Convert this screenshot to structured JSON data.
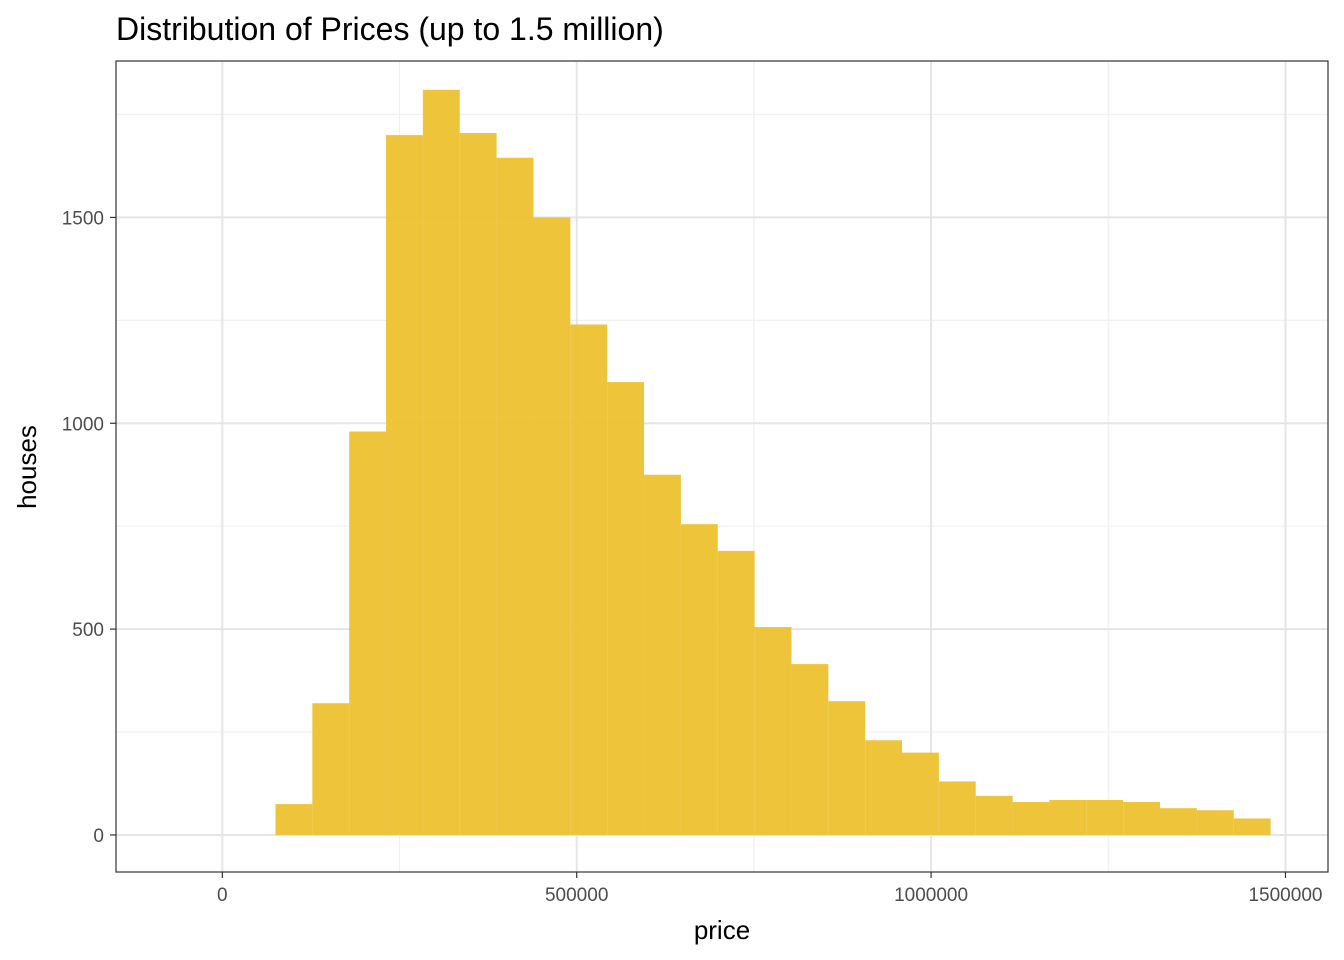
{
  "chart_data": {
    "type": "bar",
    "subtype": "histogram",
    "title": "Distribution of Prices (up to 1.5 million)",
    "xlabel": "price",
    "ylabel": "houses",
    "xlim": [
      -150000,
      1560000
    ],
    "ylim": [
      -90,
      1880
    ],
    "x_ticks": [
      0,
      500000,
      1000000,
      1500000
    ],
    "x_tick_labels": [
      "0",
      "500000",
      "1000000",
      "1500000"
    ],
    "y_ticks": [
      0,
      500,
      1000,
      1500
    ],
    "y_tick_labels": [
      "0",
      "500",
      "1000",
      "1500"
    ],
    "grid": true,
    "bin_edges": [
      75000,
      127000,
      179000,
      231000,
      283000,
      335000,
      387000,
      439000,
      491000,
      543000,
      595000,
      647000,
      699000,
      751000,
      803000,
      855000,
      907000,
      959000,
      1011000,
      1063000,
      1115000,
      1167000,
      1219000,
      1271000,
      1323000,
      1375000,
      1427000,
      1479000
    ],
    "values": [
      75,
      320,
      980,
      1700,
      1810,
      1705,
      1645,
      1500,
      1240,
      1100,
      875,
      755,
      690,
      505,
      415,
      325,
      230,
      200,
      130,
      95,
      80,
      85,
      85,
      80,
      65,
      60,
      40
    ],
    "colors": {
      "bar": "#ecc12f"
    }
  }
}
